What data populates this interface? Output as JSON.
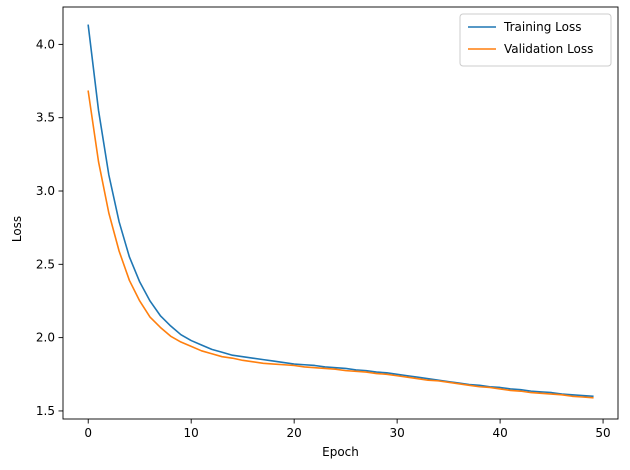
{
  "chart_data": {
    "type": "line",
    "title": "",
    "xlabel": "Epoch",
    "ylabel": "Loss",
    "xlim": [
      -2.45,
      51.45
    ],
    "ylim": [
      1.445,
      4.255
    ],
    "xticks": [
      0,
      10,
      20,
      30,
      40,
      50
    ],
    "xtick_labels": [
      "0",
      "10",
      "20",
      "30",
      "40",
      "50"
    ],
    "yticks": [
      1.5,
      2.0,
      2.5,
      3.0,
      3.5,
      4.0
    ],
    "ytick_labels": [
      "1.5",
      "2.0",
      "2.5",
      "3.0",
      "3.5",
      "4.0"
    ],
    "grid": false,
    "legend": {
      "position": "upper right"
    },
    "x": [
      0,
      1,
      2,
      3,
      4,
      5,
      6,
      7,
      8,
      9,
      10,
      11,
      12,
      13,
      14,
      15,
      16,
      17,
      18,
      19,
      20,
      21,
      22,
      23,
      24,
      25,
      26,
      27,
      28,
      29,
      30,
      31,
      32,
      33,
      34,
      35,
      36,
      37,
      38,
      39,
      40,
      41,
      42,
      43,
      44,
      45,
      46,
      47,
      48,
      49
    ],
    "series": [
      {
        "name": "Training Loss",
        "color": "#1f77b4",
        "values": [
          4.13,
          3.55,
          3.11,
          2.79,
          2.55,
          2.38,
          2.25,
          2.15,
          2.08,
          2.02,
          1.98,
          1.95,
          1.92,
          1.9,
          1.88,
          1.87,
          1.86,
          1.85,
          1.84,
          1.83,
          1.82,
          1.815,
          1.81,
          1.8,
          1.795,
          1.79,
          1.78,
          1.775,
          1.765,
          1.76,
          1.75,
          1.74,
          1.73,
          1.72,
          1.71,
          1.7,
          1.69,
          1.68,
          1.675,
          1.665,
          1.66,
          1.65,
          1.645,
          1.635,
          1.63,
          1.625,
          1.615,
          1.61,
          1.605,
          1.6
        ]
      },
      {
        "name": "Validation Loss",
        "color": "#ff7f0e",
        "values": [
          3.68,
          3.2,
          2.85,
          2.59,
          2.39,
          2.25,
          2.14,
          2.07,
          2.01,
          1.97,
          1.94,
          1.91,
          1.89,
          1.87,
          1.86,
          1.845,
          1.835,
          1.825,
          1.82,
          1.815,
          1.81,
          1.8,
          1.795,
          1.79,
          1.785,
          1.775,
          1.77,
          1.765,
          1.755,
          1.75,
          1.74,
          1.73,
          1.72,
          1.71,
          1.705,
          1.695,
          1.685,
          1.675,
          1.665,
          1.66,
          1.65,
          1.64,
          1.635,
          1.625,
          1.62,
          1.615,
          1.61,
          1.6,
          1.595,
          1.59
        ]
      }
    ]
  }
}
